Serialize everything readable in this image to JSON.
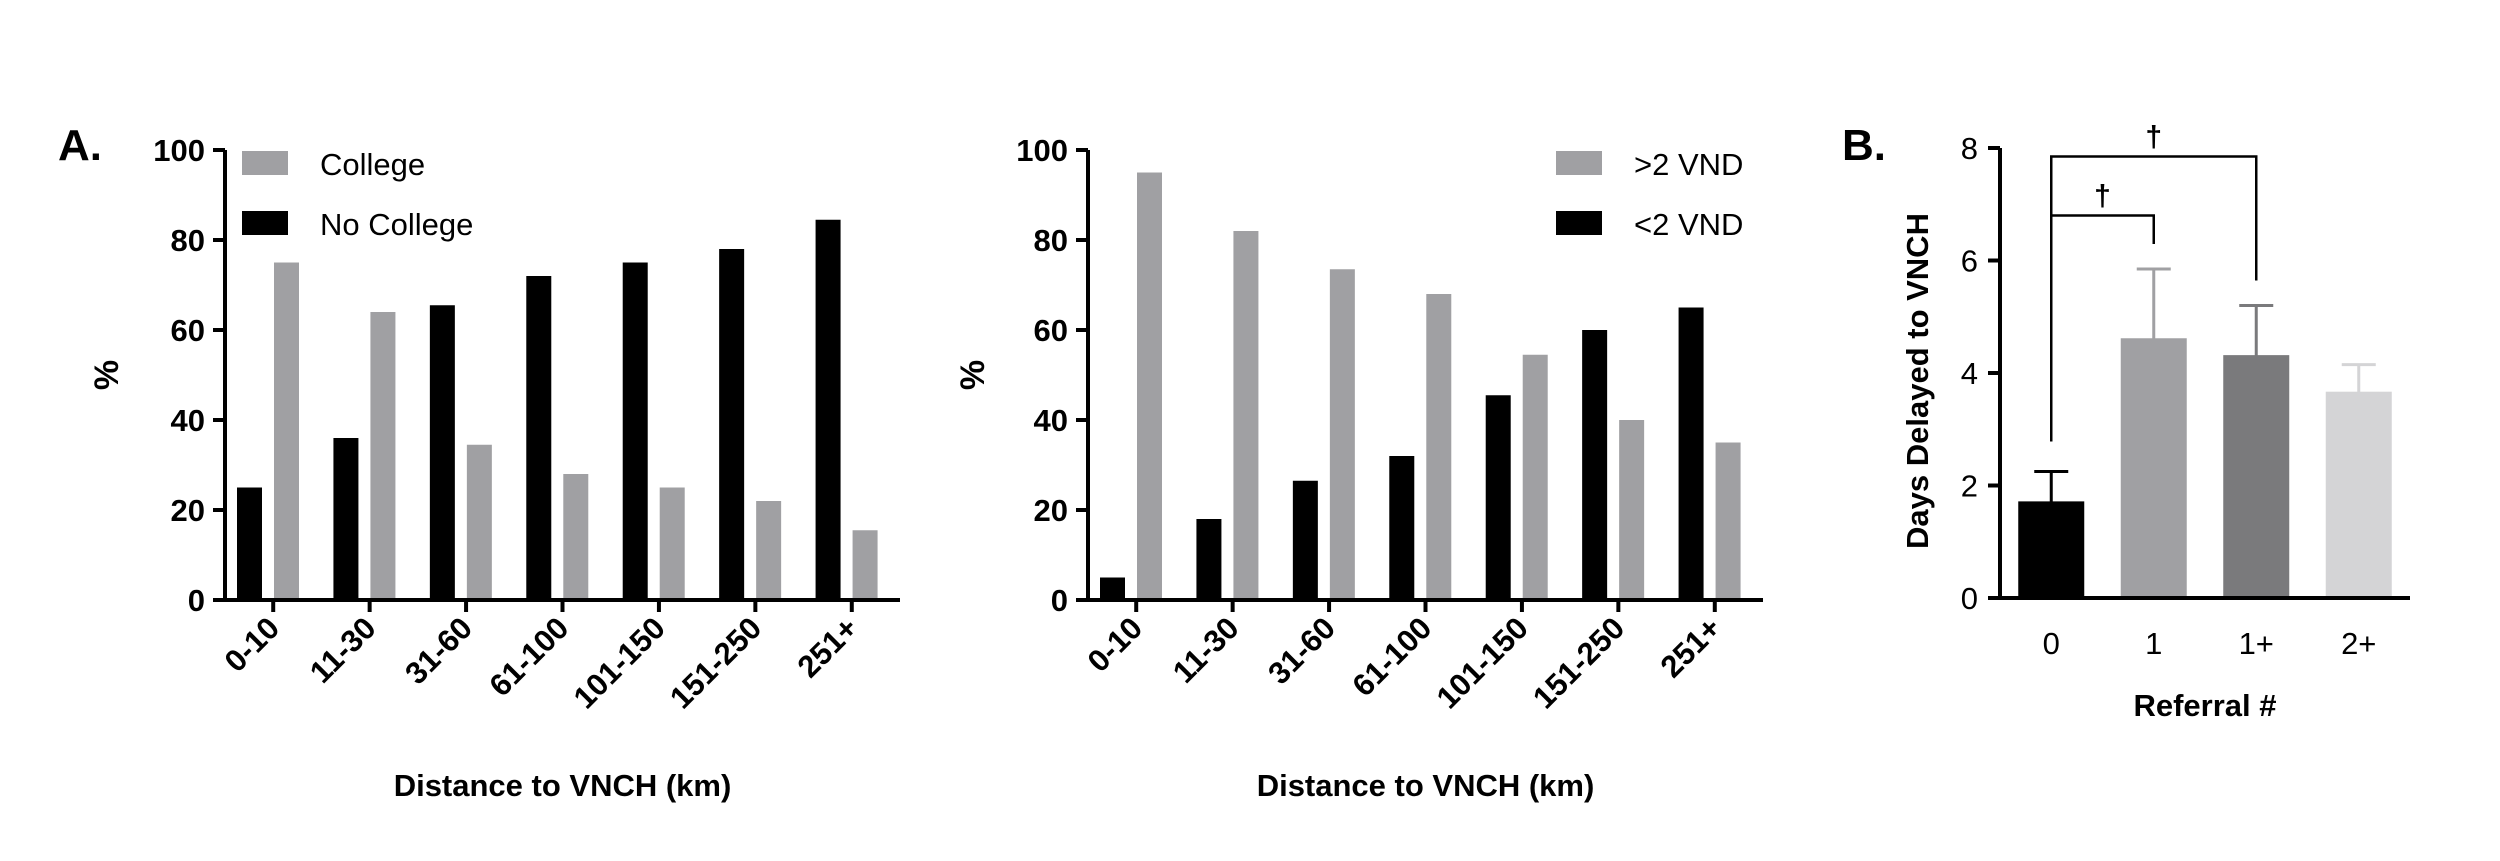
{
  "panels": {
    "a_label": "A.",
    "b_label": "B."
  },
  "chart_data": [
    {
      "id": "college",
      "type": "bar",
      "xlabel": "Distance to VNCH (km)",
      "ylabel": "%",
      "ylim": [
        0,
        100
      ],
      "yticks": [
        "0",
        "20",
        "40",
        "60",
        "80",
        "100"
      ],
      "legend_position": "top-left",
      "categories": [
        "0-10",
        "11-30",
        "31-60",
        "61-100",
        "101-150",
        "151-250",
        "251+"
      ],
      "series": [
        {
          "name": "No College",
          "color": "#000000",
          "values": [
            25,
            36,
            65.5,
            72,
            75,
            78,
            84.5
          ]
        },
        {
          "name": "College",
          "color": "#a0a0a3",
          "values": [
            75,
            64,
            34.5,
            28,
            25,
            22,
            15.5
          ]
        }
      ],
      "legend": [
        {
          "name": "College",
          "color": "#a0a0a3"
        },
        {
          "name": "No College",
          "color": "#000000"
        }
      ]
    },
    {
      "id": "vnd",
      "type": "bar",
      "xlabel": "Distance to VNCH (km)",
      "ylabel": "%",
      "ylim": [
        0,
        100
      ],
      "yticks": [
        "0",
        "20",
        "40",
        "60",
        "80",
        "100"
      ],
      "legend_position": "top-right",
      "categories": [
        "0-10",
        "11-30",
        "31-60",
        "61-100",
        "101-150",
        "151-250",
        "251+"
      ],
      "series": [
        {
          "name": "<2 VND",
          "color": "#000000",
          "values": [
            5,
            18,
            26.5,
            32,
            45.5,
            60,
            65
          ]
        },
        {
          "name": ">2 VND",
          "color": "#a0a0a3",
          "values": [
            95,
            82,
            73.5,
            68,
            54.5,
            40,
            35
          ]
        }
      ],
      "legend": [
        {
          "name": ">2 VND",
          "color": "#a0a0a3"
        },
        {
          "name": "<2 VND",
          "color": "#000000"
        }
      ]
    },
    {
      "id": "referral",
      "type": "bar",
      "xlabel": "Referral  #",
      "ylabel": "Days Delayed to VNCH",
      "ylim": [
        0,
        8
      ],
      "yticks": [
        "0",
        "2",
        "4",
        "6",
        "8"
      ],
      "categories": [
        "0",
        "1",
        "1+",
        "2+"
      ],
      "values": [
        1.7,
        4.6,
        4.3,
        3.65
      ],
      "errors": [
        0.55,
        1.25,
        0.9,
        0.5
      ],
      "colors": [
        "#000000",
        "#a0a0a3",
        "#7a7a7c",
        "#d4d4d6"
      ],
      "significance": [
        {
          "from": 0,
          "to": 1,
          "y": 6.8,
          "label": "†"
        },
        {
          "from": 0,
          "to": 2,
          "y": 7.85,
          "label": "†"
        }
      ]
    }
  ]
}
